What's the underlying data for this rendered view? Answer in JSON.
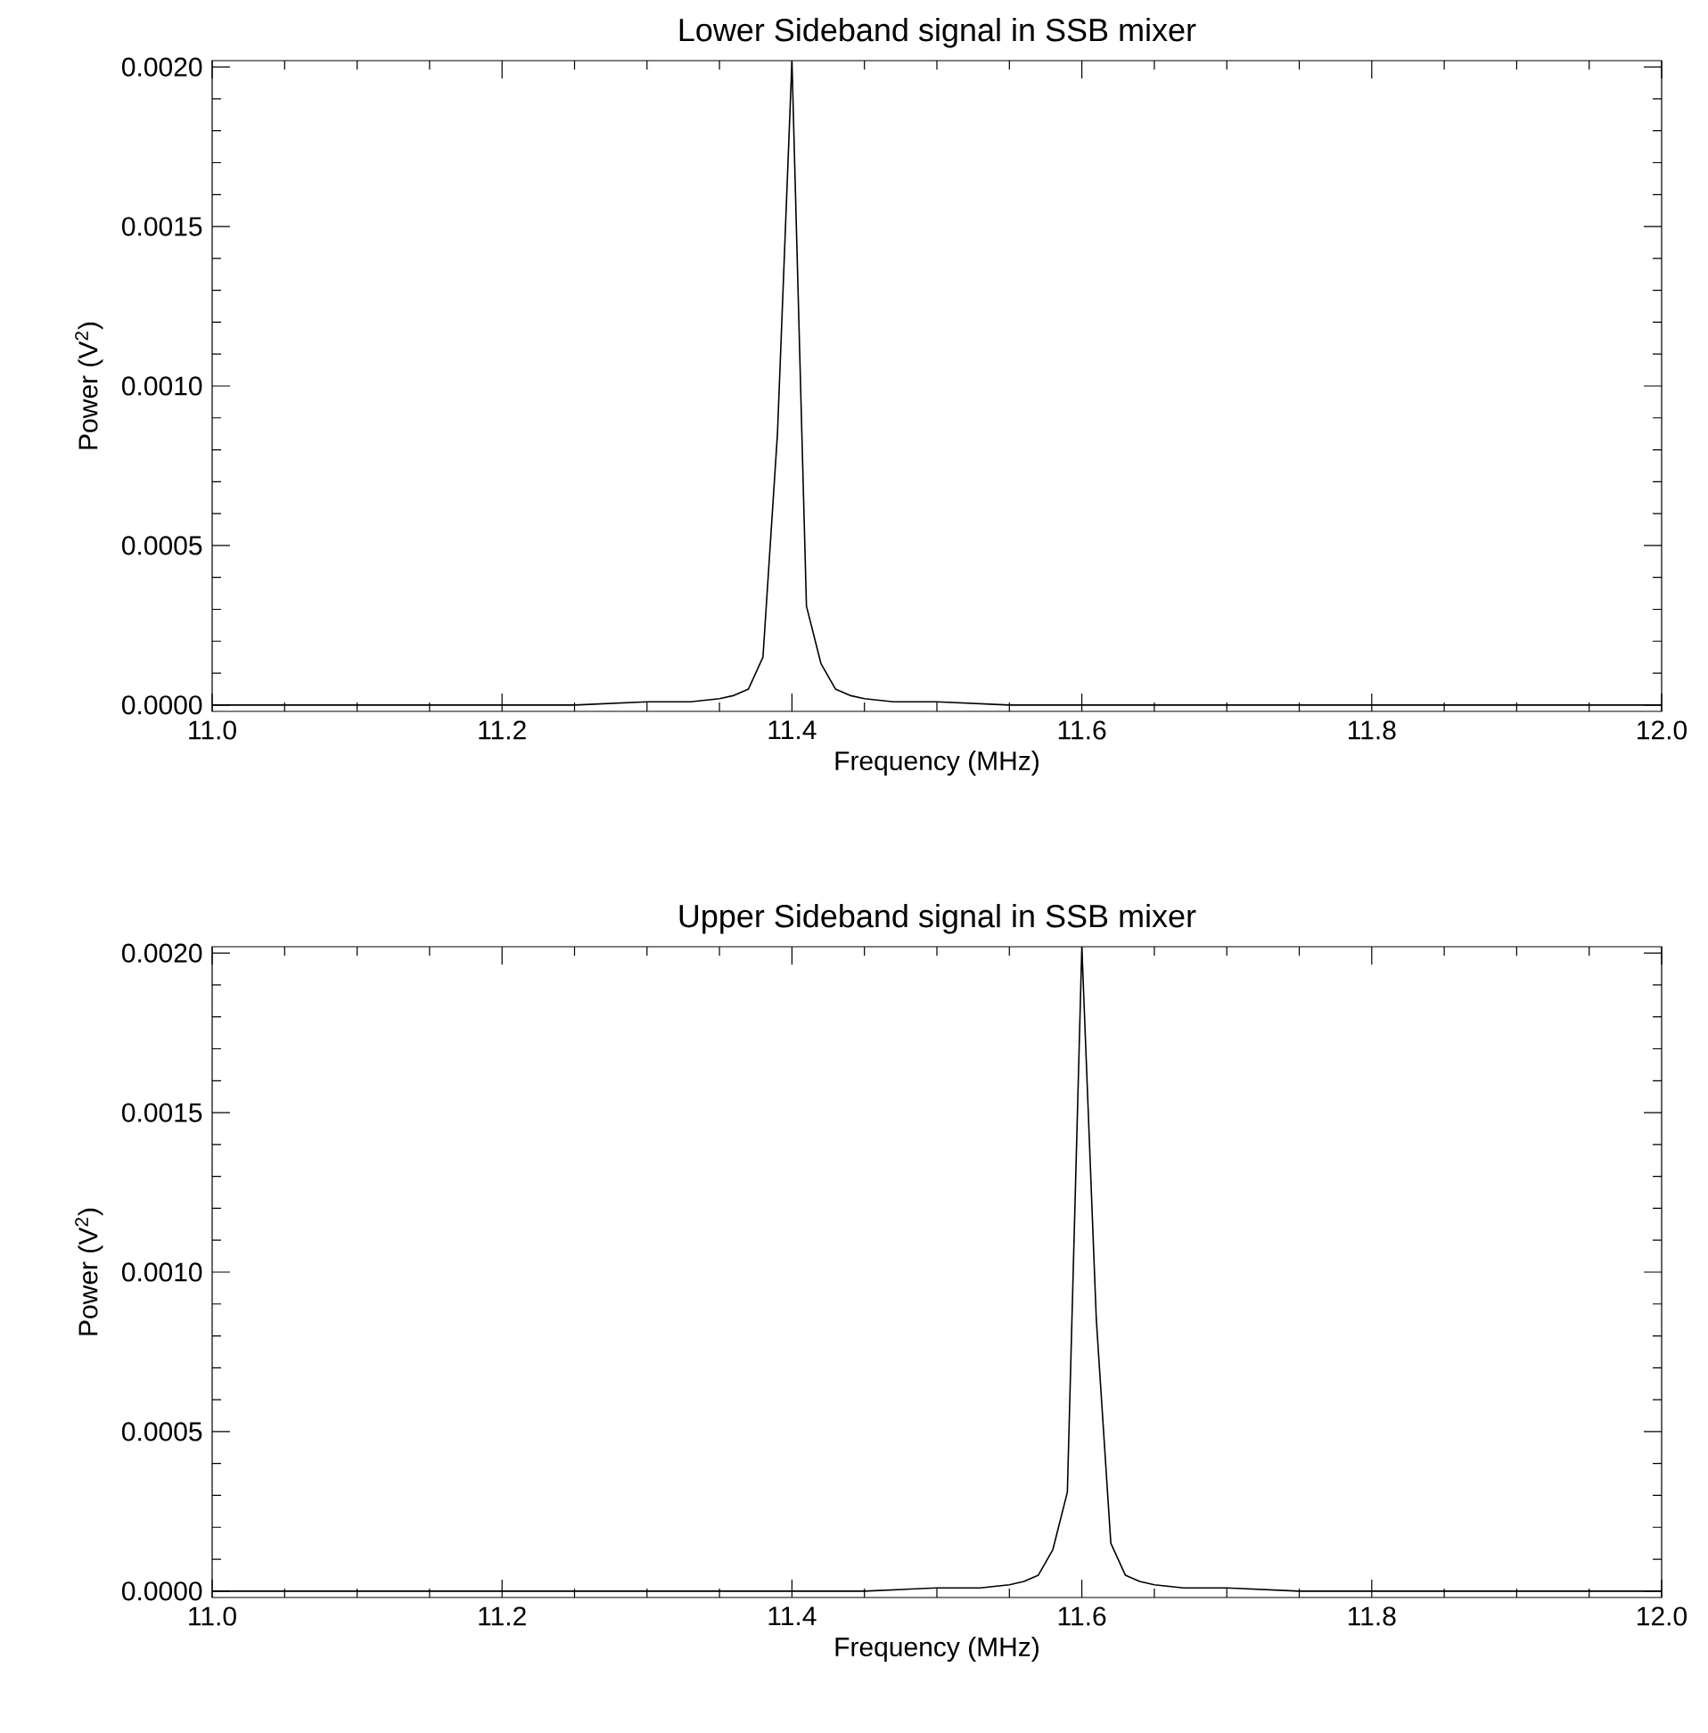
{
  "chart_data": [
    {
      "type": "line",
      "title": "Lower Sideband signal in SSB mixer",
      "xlabel": "Frequency (MHz)",
      "ylabel": "Power (V$^{2}$)",
      "color": "#000000",
      "x": [
        11.0,
        11.1,
        11.2,
        11.25,
        11.3,
        11.33,
        11.35,
        11.36,
        11.37,
        11.38,
        11.39,
        11.4,
        11.41,
        11.42,
        11.43,
        11.44,
        11.45,
        11.47,
        11.5,
        11.55,
        11.6,
        11.7,
        11.8,
        11.9,
        12.0
      ],
      "values": [
        0,
        0,
        0,
        0,
        1e-05,
        1e-05,
        2e-05,
        3e-05,
        5e-05,
        0.00015,
        0.00085,
        0.00202,
        0.00031,
        0.00013,
        5e-05,
        3e-05,
        2e-05,
        1e-05,
        1e-05,
        0,
        0,
        0,
        0,
        0,
        0
      ],
      "xlim": [
        11.0,
        12.0
      ],
      "ylim": [
        -2e-05,
        0.00202
      ],
      "xticks": [
        {
          "value": 11.0,
          "label": "11.0"
        },
        {
          "value": 11.2,
          "label": "11.2"
        },
        {
          "value": 11.4,
          "label": "11.4"
        },
        {
          "value": 11.6,
          "label": "11.6"
        },
        {
          "value": 11.8,
          "label": "11.8"
        },
        {
          "value": 12.0,
          "label": "12.0"
        }
      ],
      "yticks": [
        {
          "value": 0,
          "label": "0.0000"
        },
        {
          "value": 0.0005,
          "label": "0.0005"
        },
        {
          "value": 0.001,
          "label": "0.0010"
        },
        {
          "value": 0.0015,
          "label": "0.0015"
        },
        {
          "value": 0.002,
          "label": "0.0020"
        }
      ]
    },
    {
      "type": "line",
      "title": "Upper Sideband signal in SSB mixer",
      "xlabel": "Frequency (MHz)",
      "ylabel": "Power (V$^{2}$)",
      "color": "#000000",
      "x": [
        11.0,
        11.1,
        11.2,
        11.3,
        11.4,
        11.45,
        11.5,
        11.53,
        11.55,
        11.56,
        11.57,
        11.58,
        11.59,
        11.6,
        11.61,
        11.62,
        11.63,
        11.64,
        11.65,
        11.67,
        11.7,
        11.75,
        11.8,
        11.9,
        12.0
      ],
      "values": [
        0,
        0,
        0,
        0,
        0,
        0,
        1e-05,
        1e-05,
        2e-05,
        3e-05,
        5e-05,
        0.00013,
        0.00031,
        0.00202,
        0.00085,
        0.00015,
        5e-05,
        3e-05,
        2e-05,
        1e-05,
        1e-05,
        0,
        0,
        0,
        0
      ],
      "xlim": [
        11.0,
        12.0
      ],
      "ylim": [
        -2e-05,
        0.00202
      ],
      "xticks": [
        {
          "value": 11.0,
          "label": "11.0"
        },
        {
          "value": 11.2,
          "label": "11.2"
        },
        {
          "value": 11.4,
          "label": "11.4"
        },
        {
          "value": 11.6,
          "label": "11.6"
        },
        {
          "value": 11.8,
          "label": "11.8"
        },
        {
          "value": 12.0,
          "label": "12.0"
        }
      ],
      "yticks": [
        {
          "value": 0,
          "label": "0.0000"
        },
        {
          "value": 0.0005,
          "label": "0.0005"
        },
        {
          "value": 0.001,
          "label": "0.0010"
        },
        {
          "value": 0.0015,
          "label": "0.0015"
        },
        {
          "value": 0.002,
          "label": "0.0020"
        }
      ]
    }
  ]
}
